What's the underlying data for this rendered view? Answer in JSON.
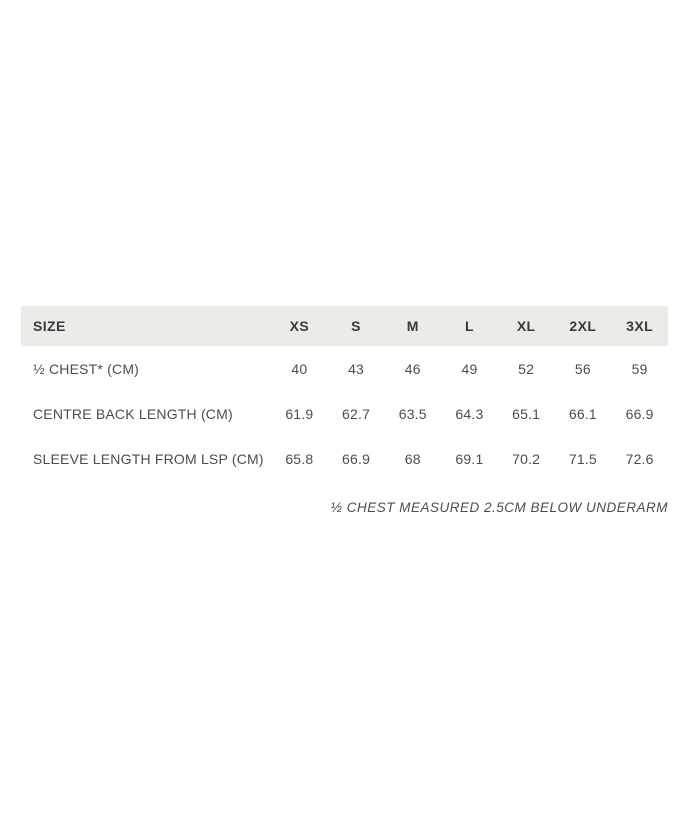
{
  "table": {
    "header": {
      "label": "SIZE",
      "columns": [
        "XS",
        "S",
        "M",
        "L",
        "XL",
        "2XL",
        "3XL"
      ]
    },
    "rows": [
      {
        "label": "½ CHEST* (CM)",
        "values": [
          "40",
          "43",
          "46",
          "49",
          "52",
          "56",
          "59"
        ]
      },
      {
        "label": "CENTRE BACK LENGTH (CM)",
        "values": [
          "61.9",
          "62.7",
          "63.5",
          "64.3",
          "65.1",
          "66.1",
          "66.9"
        ]
      },
      {
        "label": "SLEEVE LENGTH FROM LSP (CM)",
        "values": [
          "65.8",
          "66.9",
          "68",
          "69.1",
          "70.2",
          "71.5",
          "72.6"
        ]
      }
    ],
    "footnote": "½ CHEST MEASURED 2.5CM BELOW UNDERARM"
  },
  "colors": {
    "page_bg": "#ffffff",
    "header_bg": "#e9ece7",
    "header_text": "#3a3a3a",
    "body_text": "#4d4d4d",
    "footnote_text": "#4d4d4d"
  }
}
